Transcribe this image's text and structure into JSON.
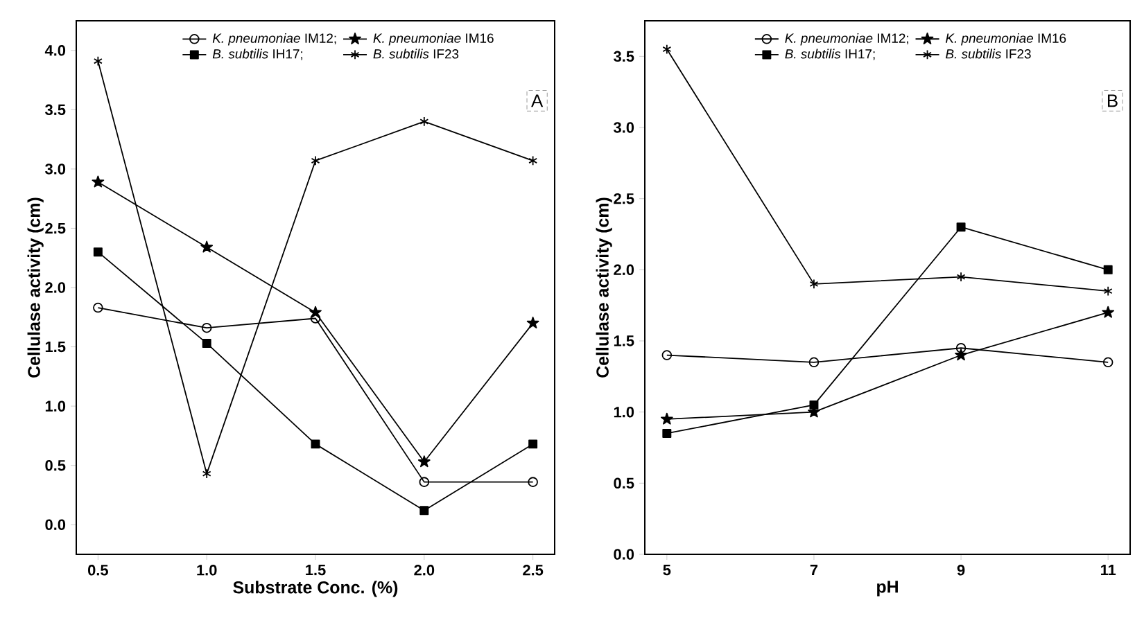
{
  "chart_data": [
    {
      "type": "line",
      "xlabel": "Substrate Conc. (%)",
      "ylabel": "Cellulase activity (cm)",
      "annotations": [
        "A"
      ],
      "legend": "top",
      "line_style": "solid",
      "xlim": [
        0.4,
        2.6
      ],
      "xticks": [
        0.5,
        {
          "value": 1,
          "label": "1.0"
        },
        1.5,
        {
          "value": 2,
          "label": "2.0"
        },
        2.5
      ],
      "ylim": [
        -0.25,
        4.25
      ],
      "yticks": [
        {
          "value": 0,
          "label": "0.0"
        },
        0.5,
        {
          "value": 1,
          "label": "1.0"
        },
        1.5,
        {
          "value": 2,
          "label": "2.0"
        },
        2.5,
        {
          "value": 3,
          "label": "3.0"
        },
        3.5,
        {
          "value": 4,
          "label": "4.0"
        }
      ],
      "x": [
        0.5,
        1.0,
        1.5,
        2.0,
        2.5
      ],
      "series": [
        {
          "name": "*K. pneumoniae* IM12;",
          "color": "#000000",
          "marker": "circle",
          "values": [
            1.83,
            1.66,
            1.74,
            0.36,
            0.36
          ]
        },
        {
          "name": "*K. pneumoniae* IM16",
          "color": "#000000",
          "marker": "star",
          "values": [
            2.89,
            2.34,
            1.79,
            0.53,
            1.7
          ]
        },
        {
          "name": "*B. subtilis* IH17;",
          "color": "#000000",
          "marker": "square",
          "values": [
            2.3,
            1.53,
            0.68,
            0.12,
            0.68
          ]
        },
        {
          "name": "*B. subtilis* IF23",
          "color": "#000000",
          "marker": "cross",
          "values": [
            3.91,
            0.43,
            3.07,
            3.4,
            3.07
          ]
        }
      ]
    },
    {
      "type": "line",
      "xlabel": "pH",
      "ylabel": "Cellulase activity (cm)",
      "annotations": [
        "B"
      ],
      "legend": "top",
      "line_style": "solid",
      "xlim": [
        4.7,
        11.3
      ],
      "xticks": [
        5,
        7,
        9,
        11
      ],
      "ylim": [
        0,
        3.75
      ],
      "yticks": [
        {
          "value": 0,
          "label": "0.0"
        },
        0.5,
        {
          "value": 1,
          "label": "1.0"
        },
        1.5,
        {
          "value": 2,
          "label": "2.0"
        },
        2.5,
        {
          "value": 3,
          "label": "3.0"
        },
        3.5
      ],
      "x": [
        5,
        7,
        9,
        11
      ],
      "series": [
        {
          "name": "*K. pneumoniae* IM12;",
          "color": "#000000",
          "marker": "circle",
          "values": [
            1.4,
            1.35,
            1.45,
            1.35
          ]
        },
        {
          "name": "*K. pneumoniae* IM16",
          "color": "#000000",
          "marker": "star",
          "values": [
            0.95,
            1.0,
            1.4,
            1.7
          ]
        },
        {
          "name": "*B. subtilis* IH17;",
          "color": "#000000",
          "marker": "square",
          "values": [
            0.85,
            1.05,
            2.3,
            2.0
          ]
        },
        {
          "name": "*B. subtilis* IF23",
          "color": "#000000",
          "marker": "cross",
          "values": [
            3.55,
            1.9,
            1.95,
            1.85
          ]
        }
      ]
    }
  ]
}
